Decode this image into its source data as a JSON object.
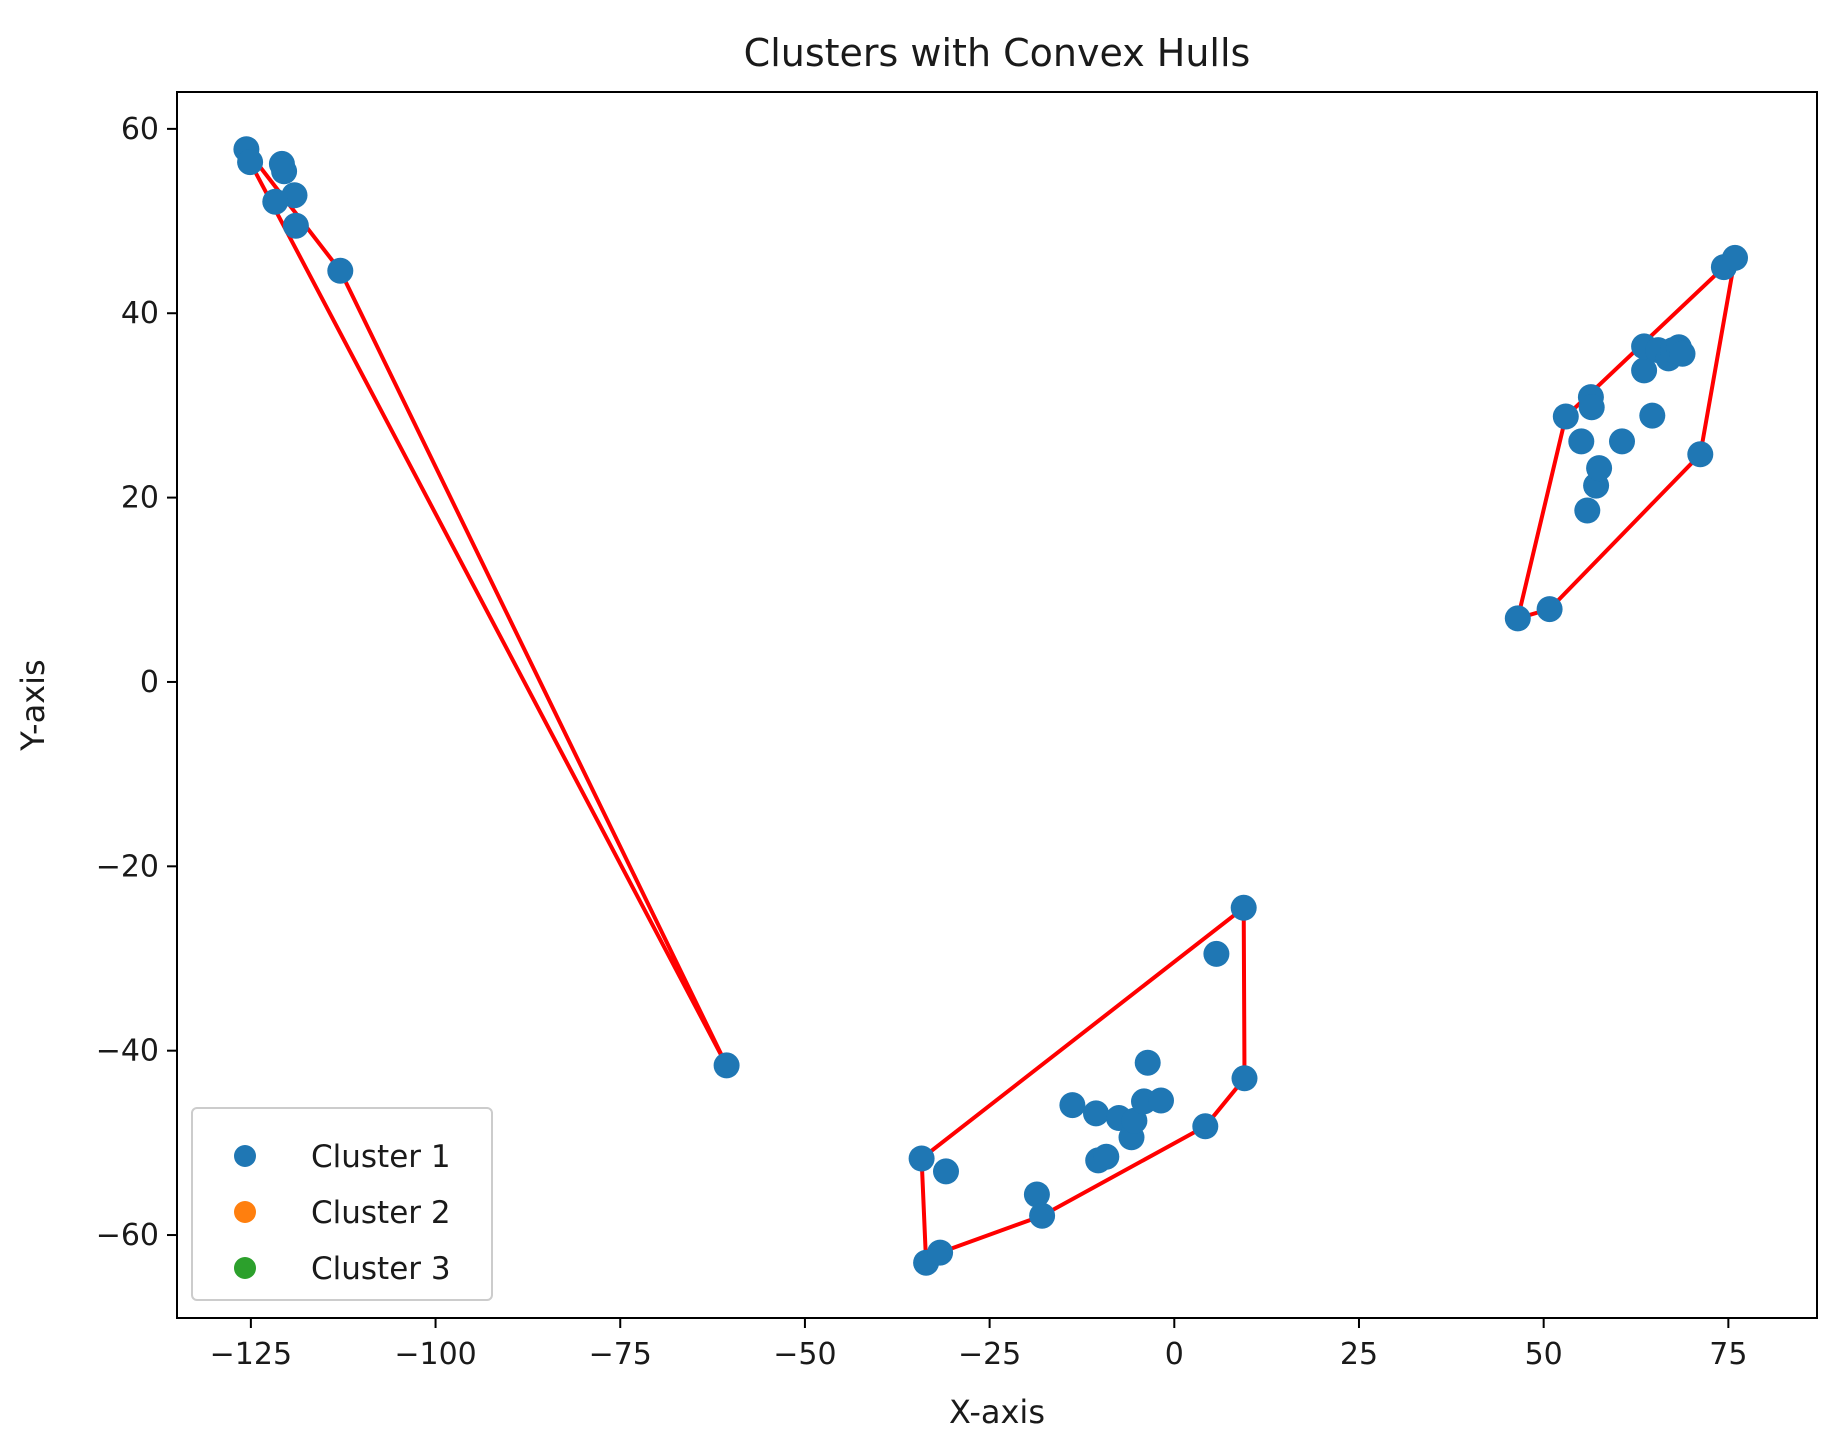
{
  "chart_data": {
    "type": "scatter",
    "title": "Clusters with Convex Hulls",
    "xlabel": "X-axis",
    "ylabel": "Y-axis",
    "xlim": [
      -135,
      87
    ],
    "ylim": [
      -69,
      64
    ],
    "xticks": [
      -125,
      -100,
      -75,
      -50,
      -25,
      0,
      25,
      50,
      75
    ],
    "yticks": [
      -60,
      -40,
      -20,
      0,
      20,
      40,
      60
    ],
    "xtick_labels": [
      "−125",
      "−100",
      "−75",
      "−50",
      "−25",
      "0",
      "25",
      "50",
      "75"
    ],
    "ytick_labels": [
      "−60",
      "−40",
      "−20",
      "0",
      "20",
      "40",
      "60"
    ],
    "grid": false,
    "legend": {
      "position": "lower-left",
      "entries": [
        {
          "label": "Cluster 1",
          "color": "#1f77b4"
        },
        {
          "label": "Cluster 2",
          "color": "#ff7f0e"
        },
        {
          "label": "Cluster 3",
          "color": "#2ca02c"
        }
      ]
    },
    "series": [
      {
        "name": "Cluster 1",
        "color": "#1f77b4",
        "points": [
          [
            -125.6,
            57.8
          ],
          [
            -125.1,
            56.4
          ],
          [
            -120.8,
            56.2
          ],
          [
            -120.5,
            55.4
          ],
          [
            -119.1,
            52.8
          ],
          [
            -121.7,
            52.1
          ],
          [
            -118.9,
            49.5
          ],
          [
            -112.9,
            44.6
          ],
          [
            -60.6,
            -41.6
          ],
          [
            -34.2,
            -51.7
          ],
          [
            -30.9,
            -53.1
          ],
          [
            -33.6,
            -63.0
          ],
          [
            -31.7,
            -61.9
          ],
          [
            -18.6,
            -55.6
          ],
          [
            -17.9,
            -57.9
          ],
          [
            -13.8,
            -45.9
          ],
          [
            -10.6,
            -46.8
          ],
          [
            -10.3,
            -51.9
          ],
          [
            -9.2,
            -51.5
          ],
          [
            -7.5,
            -47.3
          ],
          [
            -5.8,
            -49.4
          ],
          [
            -5.4,
            -47.6
          ],
          [
            -4.1,
            -45.5
          ],
          [
            -3.6,
            -41.3
          ],
          [
            -1.8,
            -45.4
          ],
          [
            4.2,
            -48.2
          ],
          [
            5.7,
            -29.5
          ],
          [
            9.4,
            -24.5
          ],
          [
            9.5,
            -43.0
          ],
          [
            46.5,
            6.9
          ],
          [
            50.8,
            7.9
          ],
          [
            53.0,
            28.8
          ],
          [
            55.1,
            26.1
          ],
          [
            55.9,
            18.6
          ],
          [
            56.4,
            30.9
          ],
          [
            56.5,
            29.8
          ],
          [
            57.1,
            21.3
          ],
          [
            57.5,
            23.2
          ],
          [
            60.6,
            26.1
          ],
          [
            63.6,
            33.8
          ],
          [
            63.6,
            36.4
          ],
          [
            64.7,
            28.9
          ],
          [
            65.5,
            36.0
          ],
          [
            66.9,
            35.1
          ],
          [
            67.5,
            36.0
          ],
          [
            68.3,
            36.3
          ],
          [
            68.8,
            35.6
          ],
          [
            71.2,
            24.7
          ],
          [
            74.4,
            45.0
          ],
          [
            75.9,
            46.0
          ]
        ]
      },
      {
        "name": "Cluster 2",
        "color": "#ff7f0e",
        "points": []
      },
      {
        "name": "Cluster 3",
        "color": "#2ca02c",
        "points": []
      }
    ],
    "hulls": {
      "color": "#ff0000",
      "polygons": [
        [
          [
            -125.6,
            57.8
          ],
          [
            -112.9,
            44.6
          ],
          [
            -60.6,
            -41.6
          ],
          [
            -125.1,
            56.4
          ],
          [
            -125.6,
            57.8
          ]
        ],
        [
          [
            -34.2,
            -51.7
          ],
          [
            9.4,
            -24.5
          ],
          [
            9.5,
            -43.0
          ],
          [
            4.2,
            -48.2
          ],
          [
            -17.9,
            -57.9
          ],
          [
            -31.7,
            -61.9
          ],
          [
            -33.6,
            -63.0
          ],
          [
            -34.2,
            -51.7
          ]
        ],
        [
          [
            46.5,
            6.9
          ],
          [
            53.0,
            28.8
          ],
          [
            74.4,
            45.0
          ],
          [
            75.9,
            46.0
          ],
          [
            71.2,
            24.7
          ],
          [
            50.8,
            7.9
          ],
          [
            46.5,
            6.9
          ]
        ]
      ]
    }
  }
}
